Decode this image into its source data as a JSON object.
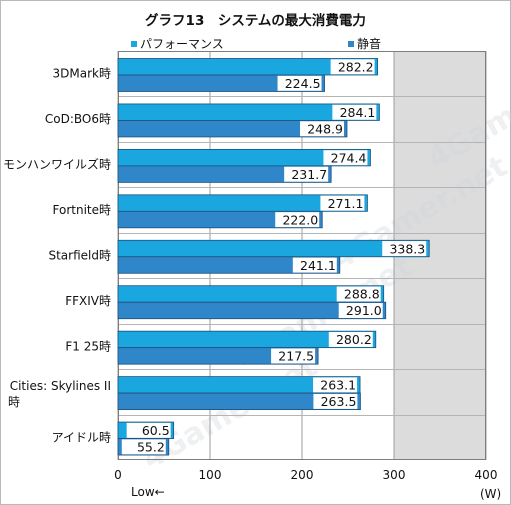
{
  "chart_data": {
    "type": "bar",
    "orientation": "horizontal",
    "title": "グラフ13　システムの最大消費電力",
    "categories": [
      "3DMark時",
      "CoD:BO6時",
      "モンハンワイルズ時",
      "Fortnite時",
      "Starfield時",
      "FFXIV時",
      "F1 25時",
      "Cities: Skylines II 時",
      "アイドル時"
    ],
    "series": [
      {
        "name": "パフォーマンス",
        "values": [
          282.2,
          284.1,
          274.4,
          271.1,
          338.3,
          288.8,
          280.2,
          263.1,
          60.5
        ],
        "color": "#1aa7e0"
      },
      {
        "name": "静音",
        "values": [
          224.5,
          248.9,
          231.7,
          222.0,
          241.1,
          291.0,
          217.5,
          263.5,
          55.2
        ],
        "color": "#2f86c8"
      }
    ],
    "xlim": [
      0,
      400
    ],
    "xticks": [
      0,
      100,
      200,
      300,
      400
    ],
    "x_unit": "(W)",
    "x_direction_note": "Low←",
    "grid": "vertical",
    "legend_position": "top",
    "background_band_color": "#dcdcdc",
    "watermark": "4Gamer.net"
  }
}
